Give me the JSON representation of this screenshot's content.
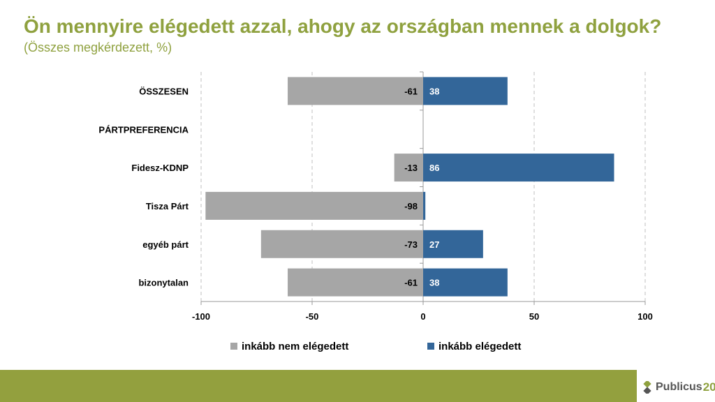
{
  "title": "Ön mennyire elégedett azzal, ahogy az országban mennek a dolgok?",
  "subtitle": "(Összes megkérdezett, %)",
  "logo": {
    "text": "Publicus",
    "number": "20"
  },
  "colors": {
    "negative": "#a6a6a6",
    "positive": "#336699",
    "accent": "#93a03e"
  },
  "chart_data": {
    "type": "bar",
    "orientation": "horizontal",
    "categories": [
      "ÖSSZESEN",
      "PÁRTPREFERENCIA",
      "Fidesz-KDNP",
      "Tisza Párt",
      "egyéb párt",
      "bizonytalan"
    ],
    "series": [
      {
        "name": "inkább nem elégedett",
        "values": [
          -61,
          null,
          -13,
          -98,
          -73,
          -61
        ],
        "labels": [
          "-61",
          "",
          "-13",
          "-98",
          "-73",
          "-61"
        ]
      },
      {
        "name": "inkább elégedett",
        "values": [
          38,
          null,
          86,
          1,
          27,
          38
        ],
        "labels": [
          "38",
          "",
          "86",
          "",
          "27",
          "38"
        ]
      }
    ],
    "xlim": [
      -100,
      100
    ],
    "xticks": [
      -100,
      -50,
      0,
      50,
      100
    ],
    "xtick_labels": [
      "-100",
      "-50",
      "0",
      "50",
      "100"
    ],
    "grid": true,
    "legend": "bottom"
  }
}
